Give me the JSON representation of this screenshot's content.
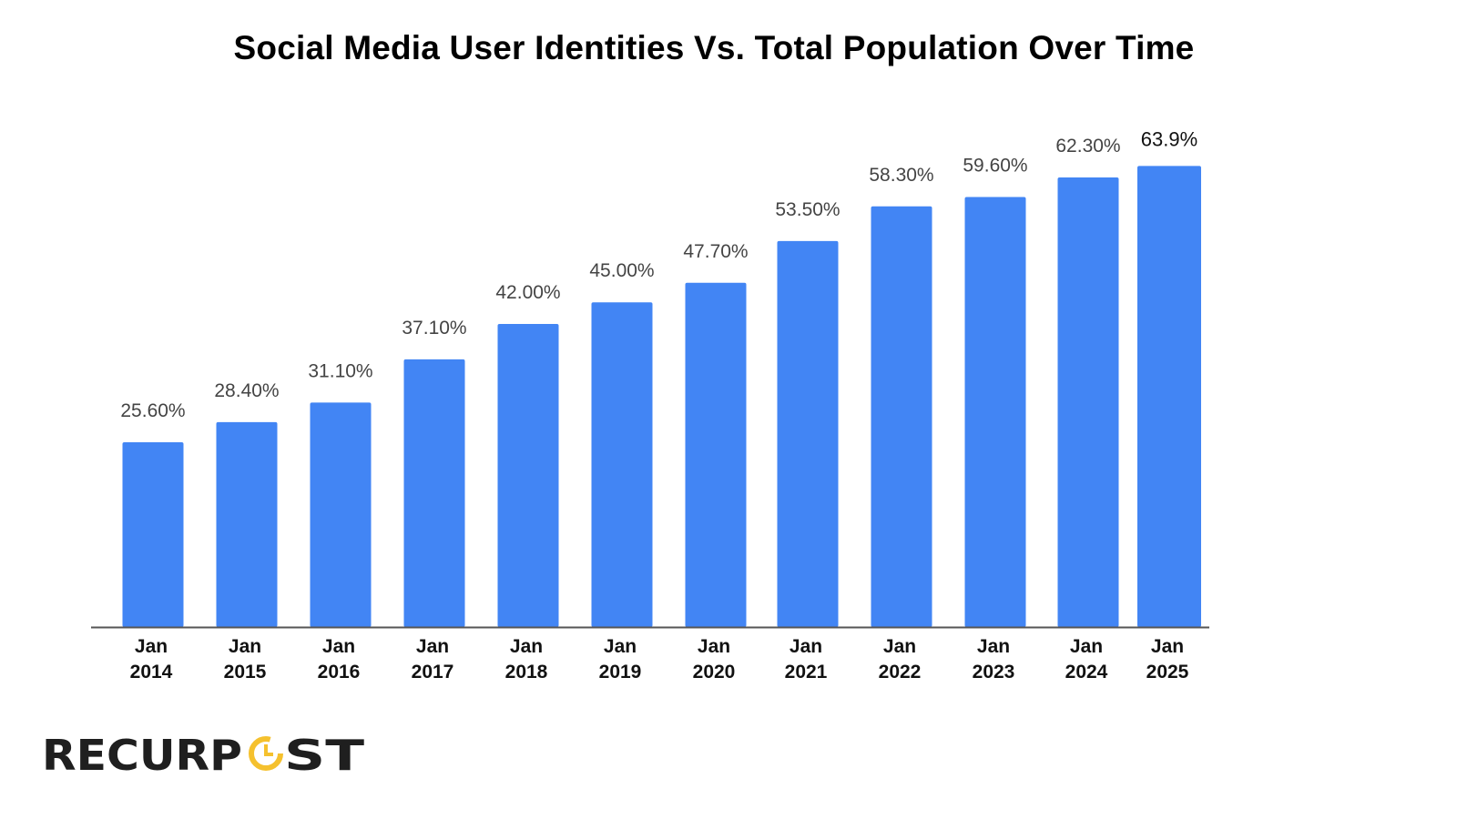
{
  "chart_data": {
    "type": "bar",
    "title": "Social Media User Identities Vs. Total Population Over Time",
    "xlabel": "",
    "ylabel": "",
    "ylim": [
      0,
      70
    ],
    "grid": false,
    "categories": [
      [
        "Jan",
        "2014"
      ],
      [
        "Jan",
        "2015"
      ],
      [
        "Jan",
        "2016"
      ],
      [
        "Jan",
        "2017"
      ],
      [
        "Jan",
        "2018"
      ],
      [
        "Jan",
        "2019"
      ],
      [
        "Jan",
        "2020"
      ],
      [
        "Jan",
        "2021"
      ],
      [
        "Jan",
        "2022"
      ],
      [
        "Jan",
        "2023"
      ],
      [
        "Jan",
        "2024"
      ],
      [
        "Jan",
        "2025"
      ]
    ],
    "values": [
      25.6,
      28.4,
      31.1,
      37.1,
      42.0,
      45.0,
      47.7,
      53.5,
      58.3,
      59.6,
      62.3,
      63.9
    ],
    "data_labels": [
      "25.60%",
      "28.40%",
      "31.10%",
      "37.10%",
      "42.00%",
      "45.00%",
      "47.70%",
      "53.50%",
      "58.30%",
      "59.60%",
      "62.30%",
      "63.9%"
    ],
    "bar_color": "#4285f4",
    "axis_color": "#555555"
  },
  "logo": {
    "text": "RECURPOST",
    "accent_color": "#f5c12e",
    "color": "#1f1f1f"
  }
}
